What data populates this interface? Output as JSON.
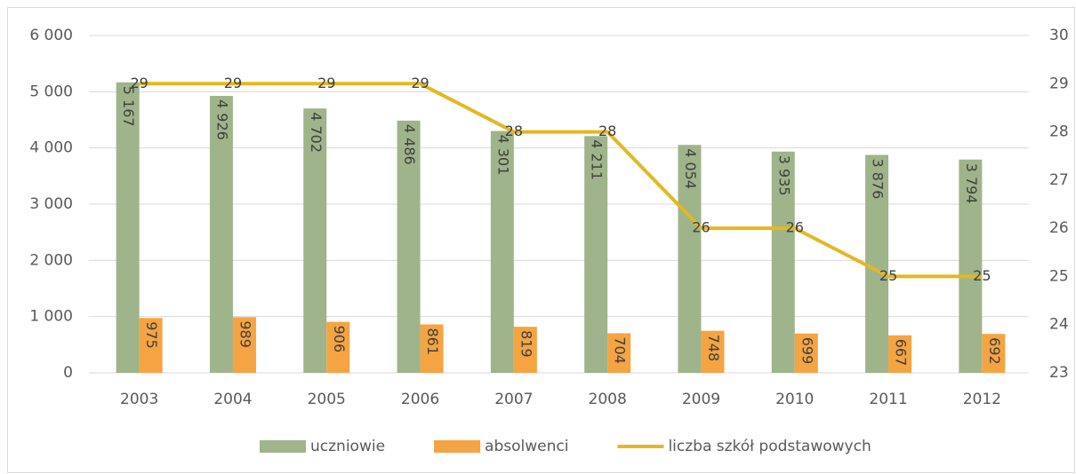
{
  "chart_data": {
    "type": "bar_line",
    "categories": [
      "2003",
      "2004",
      "2005",
      "2006",
      "2007",
      "2008",
      "2009",
      "2010",
      "2011",
      "2012"
    ],
    "series": [
      {
        "name": "uczniowie",
        "color": "#9fb48a",
        "values": [
          5167,
          4926,
          4702,
          4486,
          4301,
          4211,
          4054,
          3935,
          3876,
          3794
        ],
        "value_labels": [
          "5 167",
          "4 926",
          "4 702",
          "4 486",
          "4 301",
          "4 211",
          "4 054",
          "3 935",
          "3 876",
          "3 794"
        ]
      },
      {
        "name": "absolwenci",
        "color": "#f4a442",
        "values": [
          975,
          989,
          906,
          861,
          819,
          704,
          748,
          699,
          667,
          692
        ]
      },
      {
        "name": "liczba szkół podstawowych",
        "color": "#e2b823",
        "axis": "y2",
        "type": "line",
        "values": [
          29,
          29,
          29,
          29,
          28,
          28,
          26,
          26,
          25,
          25
        ]
      }
    ],
    "ylim": [
      0,
      6000
    ],
    "yticks": [
      0,
      {
        "value": 1000,
        "label": "1 000"
      },
      {
        "value": 2000,
        "label": "2 000"
      },
      {
        "value": 3000,
        "label": "3 000"
      },
      {
        "value": 4000,
        "label": "4 000"
      },
      {
        "value": 5000,
        "label": "5 000"
      },
      {
        "value": 6000,
        "label": "6 000"
      }
    ],
    "y2lim": [
      23,
      30
    ],
    "y2ticks": [
      23,
      24,
      25,
      26,
      27,
      28,
      29,
      30
    ],
    "grid": true,
    "legend": "bottom"
  }
}
